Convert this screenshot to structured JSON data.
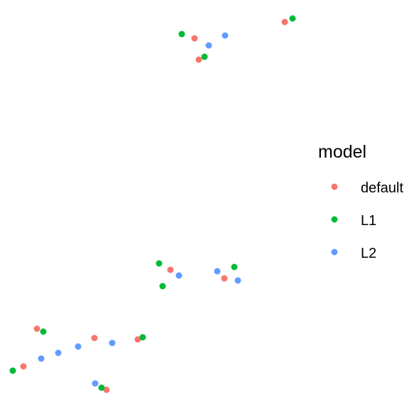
{
  "chart_data": {
    "type": "scatter",
    "title": "",
    "xlabel": "",
    "ylabel": "",
    "xlim": [
      0,
      575
    ],
    "ylim": [
      -575,
      0
    ],
    "grid": false,
    "axes_visible": false,
    "legend": {
      "title": "model",
      "placement": "right",
      "entries": [
        {
          "name": "default",
          "color": "#F8766D"
        },
        {
          "name": "L1",
          "color": "#00BA38"
        },
        {
          "name": "L2",
          "color": "#619CFF"
        }
      ]
    },
    "series": [
      {
        "name": "default",
        "color": "#F8766D",
        "points": [
          {
            "x": 274,
            "y": -54
          },
          {
            "x": 401,
            "y": -31
          },
          {
            "x": 280,
            "y": -84
          },
          {
            "x": 240,
            "y": -380
          },
          {
            "x": 316,
            "y": -392
          },
          {
            "x": 52,
            "y": -463
          },
          {
            "x": 133,
            "y": -476
          },
          {
            "x": 194,
            "y": -478
          },
          {
            "x": 33,
            "y": -516
          },
          {
            "x": 150,
            "y": -549
          }
        ]
      },
      {
        "name": "L1",
        "color": "#00BA38",
        "points": [
          {
            "x": 256,
            "y": -48
          },
          {
            "x": 412,
            "y": -26
          },
          {
            "x": 288,
            "y": -80
          },
          {
            "x": 224,
            "y": -371
          },
          {
            "x": 229,
            "y": -403
          },
          {
            "x": 330,
            "y": -376
          },
          {
            "x": 61,
            "y": -467
          },
          {
            "x": 201,
            "y": -475
          },
          {
            "x": 18,
            "y": -522
          },
          {
            "x": 143,
            "y": -546
          }
        ]
      },
      {
        "name": "L2",
        "color": "#619CFF",
        "points": [
          {
            "x": 317,
            "y": -50
          },
          {
            "x": 294,
            "y": -64
          },
          {
            "x": 252,
            "y": -388
          },
          {
            "x": 306,
            "y": -382
          },
          {
            "x": 335,
            "y": -395
          },
          {
            "x": 158,
            "y": -483
          },
          {
            "x": 110,
            "y": -488
          },
          {
            "x": 82,
            "y": -497
          },
          {
            "x": 58,
            "y": -505
          },
          {
            "x": 134,
            "y": -540
          }
        ]
      }
    ]
  }
}
